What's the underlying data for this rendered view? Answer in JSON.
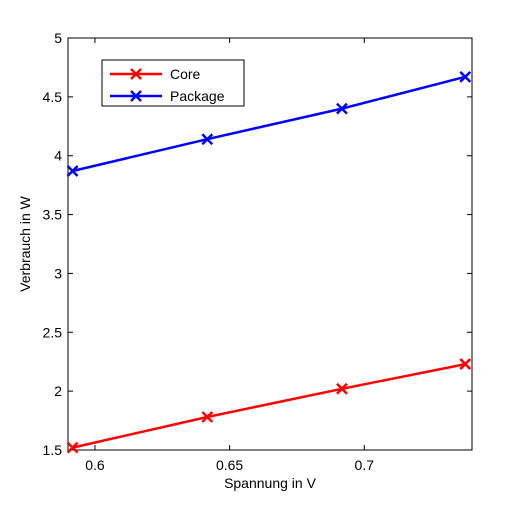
{
  "chart_data": {
    "type": "line",
    "xlabel": "Spannung in V",
    "ylabel": "Verbrauch in W",
    "xlim": [
      0.59,
      0.74
    ],
    "ylim": [
      1.5,
      5
    ],
    "x_ticks": [
      "0.6",
      "0.65",
      "0.7"
    ],
    "x_tick_values": [
      0.6,
      0.65,
      0.7
    ],
    "y_ticks": [
      "1.5",
      "2",
      "2.5",
      "3",
      "3.5",
      "4",
      "4.5",
      "5"
    ],
    "y_tick_values": [
      1.5,
      2,
      2.5,
      3,
      3.5,
      4,
      4.5,
      5
    ],
    "grid": false,
    "legend_position": "top-left",
    "marker": "x",
    "x": [
      0.5917,
      0.6417,
      0.6917,
      0.7375
    ],
    "series": [
      {
        "name": "Core",
        "color": "#ff0000",
        "values": [
          1.52,
          1.78,
          2.02,
          2.23
        ]
      },
      {
        "name": "Package",
        "color": "#0000ff",
        "values": [
          3.87,
          4.14,
          4.4,
          4.67
        ]
      }
    ]
  }
}
